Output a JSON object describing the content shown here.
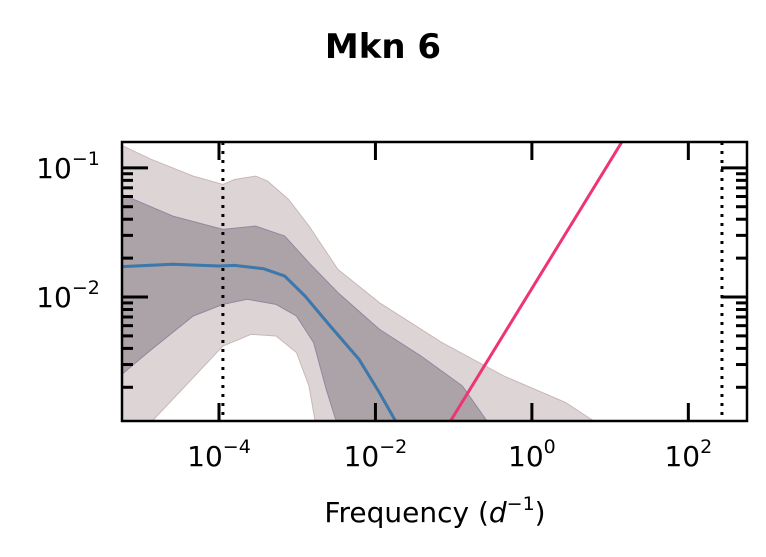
{
  "chart_data": {
    "type": "line",
    "title": "Mkn 6",
    "xlabel": "Frequency (d^-1)",
    "xlabel_parts": {
      "main": "Frequency (",
      "var": "d",
      "sup": "−1",
      "close": ")"
    },
    "ylabel": "",
    "xscale": "log",
    "yscale": "log",
    "xlim_log10": [
      -5.24,
      2.75
    ],
    "ylim_log10": [
      -2.96,
      -0.8
    ],
    "x_ticks": [
      {
        "log10": -4,
        "label": "10",
        "sup": "−4"
      },
      {
        "log10": -2,
        "label": "10",
        "sup": "−2"
      },
      {
        "log10": 0,
        "label": "10",
        "sup": "0"
      },
      {
        "log10": 2,
        "label": "10",
        "sup": "2"
      }
    ],
    "y_ticks": [
      {
        "log10": -1,
        "label": "10",
        "sup": "−1"
      },
      {
        "log10": -2,
        "label": "10",
        "sup": "−2"
      }
    ],
    "grid": false,
    "colors": {
      "outer_band": "#ddd5d5",
      "inner_band": "#aca3a8",
      "median": "#3a78b0",
      "median_under": "#f08030",
      "powerlaw": "#ee3377",
      "vline": "#000000"
    },
    "vlines_log10_frequency": [
      -3.95,
      2.43
    ],
    "powerlaw_line": {
      "log10_x": [
        -1.04,
        1.15
      ],
      "log10_y": [
        -2.96,
        -0.8
      ]
    },
    "median": {
      "log10_frequency": [
        -5.24,
        -4.59,
        -4.0,
        -3.8,
        -3.43,
        -3.16,
        -2.9,
        -2.58,
        -2.21,
        -1.95,
        -1.74
      ],
      "log10_power": [
        -1.765,
        -1.747,
        -1.76,
        -1.755,
        -1.781,
        -1.838,
        -1.992,
        -2.224,
        -2.482,
        -2.74,
        -2.964
      ]
    },
    "outer_upper": {
      "log10_frequency": [
        -5.24,
        -4.86,
        -4.33,
        -3.95,
        -3.8,
        -3.53,
        -3.38,
        -3.11,
        -2.85,
        -2.48,
        -1.95,
        -1.15,
        -0.36,
        0.43,
        0.8
      ],
      "log10_power": [
        -0.827,
        -0.936,
        -1.064,
        -1.129,
        -1.09,
        -1.064,
        -1.103,
        -1.245,
        -1.451,
        -1.786,
        -2.044,
        -2.353,
        -2.611,
        -2.817,
        -2.964
      ]
    },
    "outer_lower": {
      "log10_frequency": [
        -4.86,
        -4.43,
        -3.95,
        -3.59,
        -3.27,
        -3.01,
        -2.85,
        -2.77
      ],
      "log10_power": [
        -2.964,
        -2.688,
        -2.379,
        -2.289,
        -2.302,
        -2.43,
        -2.688,
        -2.964
      ]
    },
    "inner_upper": {
      "log10_frequency": [
        -5.24,
        -4.59,
        -3.95,
        -3.53,
        -3.16,
        -2.85,
        -2.48,
        -1.95,
        -1.42,
        -0.89,
        -0.57
      ],
      "log10_power": [
        -1.206,
        -1.374,
        -1.477,
        -1.451,
        -1.528,
        -1.735,
        -1.966,
        -2.25,
        -2.456,
        -2.688,
        -2.964
      ]
    },
    "inner_lower": {
      "log10_frequency": [
        -5.24,
        -4.86,
        -4.33,
        -3.95,
        -3.64,
        -3.27,
        -3.01,
        -2.79,
        -2.63,
        -2.5
      ],
      "log10_power": [
        -2.598,
        -2.405,
        -2.147,
        -2.057,
        -2.018,
        -2.057,
        -2.147,
        -2.353,
        -2.714,
        -2.964
      ]
    }
  }
}
